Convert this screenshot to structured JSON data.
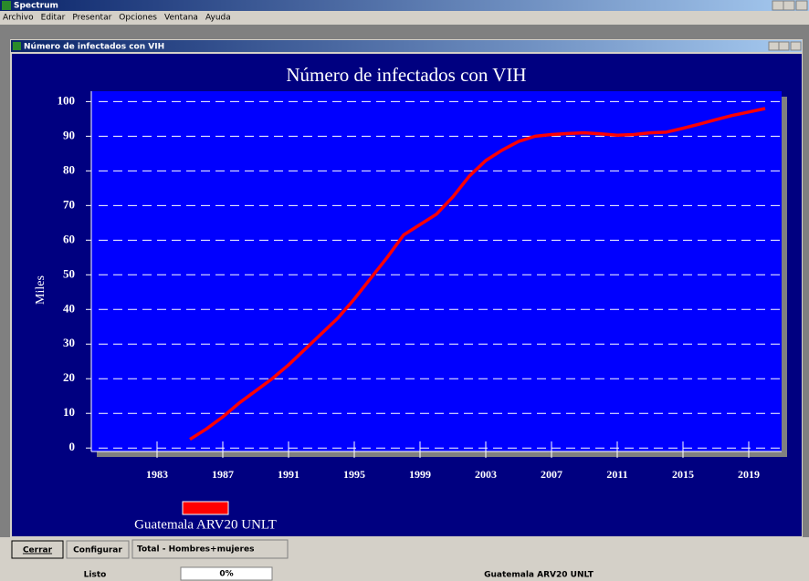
{
  "app": {
    "title": "Spectrum",
    "menu": [
      "Archivo",
      "Editar",
      "Presentar",
      "Opciones",
      "Ventana",
      "Ayuda"
    ],
    "window_title": "Número de infectados con VIH",
    "buttons": [
      "Cerrar",
      "Configurar"
    ],
    "selector": "Total - Hombres+mujeres",
    "status": {
      "state": "Listo",
      "progress": "0%",
      "scenario": "Guatemala ARV20 UNLT"
    }
  },
  "chart_data": {
    "type": "line",
    "title": "Número de infectados con VIH",
    "y_label": "Miles",
    "x": [
      1985,
      1986,
      1987,
      1988,
      1989,
      1990,
      1991,
      1992,
      1993,
      1994,
      1995,
      1996,
      1997,
      1998,
      1999,
      2000,
      2001,
      2002,
      2003,
      2004,
      2005,
      2006,
      2007,
      2008,
      2009,
      2010,
      2011,
      2012,
      2013,
      2014,
      2015,
      2016,
      2017,
      2018,
      2019,
      2020
    ],
    "series": [
      {
        "name": "Guatemala ARV20 UNLT",
        "color": "#ff0000",
        "values": [
          2.5,
          5.5,
          9,
          13,
          16.5,
          20,
          24,
          28.5,
          33,
          37.5,
          43,
          49,
          55,
          61.5,
          64.5,
          67.5,
          72.5,
          78.5,
          83,
          86,
          88.5,
          90,
          90.5,
          90.8,
          91,
          90.7,
          90.3,
          90.5,
          91,
          91.2,
          92.3,
          93.5,
          94.8,
          96,
          97,
          98
        ]
      }
    ],
    "xlim": [
      1979,
      2021
    ],
    "xticks": [
      1983,
      1987,
      1991,
      1995,
      1999,
      2003,
      2007,
      2011,
      2015,
      2019
    ],
    "ylim": [
      -1,
      103
    ],
    "yticks": [
      0,
      10,
      20,
      30,
      40,
      50,
      60,
      70,
      80,
      90,
      100
    ],
    "grid": true
  }
}
